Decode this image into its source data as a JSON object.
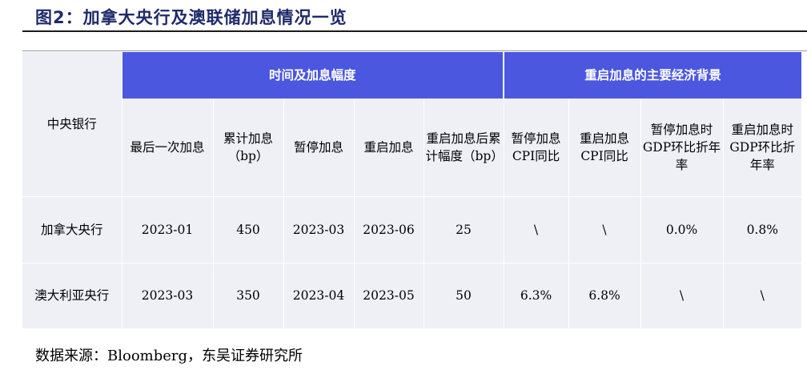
{
  "title": "图2：加拿大央行及澳联储加息情况一览",
  "table": {
    "bank_header": "中央银行",
    "groups": [
      "时间及加息幅度",
      "重启加息的主要经济背景"
    ],
    "subheaders": [
      "最后一次加息",
      "累计加息（bp）",
      "暂停加息",
      "重启加息",
      "重启加息后累计幅度（bp）",
      "暂停加息CPI同比",
      "重启加息CPI同比",
      "暂停加息时GDP环比折年率",
      "重启加息时GDP环比折年率"
    ],
    "rows": [
      {
        "bank": "加拿大央行",
        "cells": [
          "2023-01",
          "450",
          "2023-03",
          "2023-06",
          "25",
          "\\",
          "\\",
          "0.0%",
          "0.8%"
        ]
      },
      {
        "bank": "澳大利亚央行",
        "cells": [
          "2023-03",
          "350",
          "2023-04",
          "2023-05",
          "50",
          "6.3%",
          "6.8%",
          "\\",
          "\\"
        ]
      }
    ]
  },
  "source": "数据来源：Bloomberg，东吴证券研究所"
}
